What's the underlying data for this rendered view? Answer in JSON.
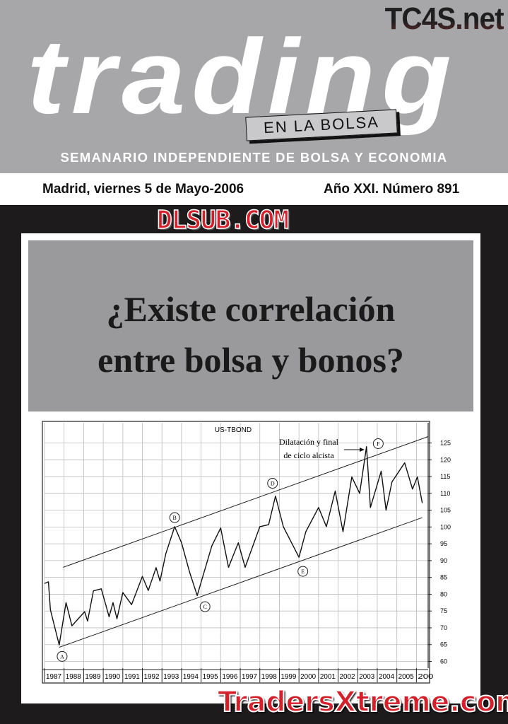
{
  "header": {
    "site_mark": "TC4S.net",
    "masthead": "trading",
    "tag": "EN LA BOLSA",
    "subtitle": "SEMANARIO INDEPENDIENTE DE BOLSA Y ECONOMIA",
    "date": "Madrid, viernes 5 de Mayo-2006",
    "issue": "Año XXI. Número 891"
  },
  "headline": {
    "line1": "¿Existe correlación",
    "line2": "entre bolsa y bonos?"
  },
  "watermarks": {
    "top": "DLSUB.COM",
    "bottom": "TradersXtreme.com"
  },
  "colors": {
    "header_bg": "#a7a6a8",
    "title_box": "#9a999b",
    "watermark_red": "#d4202a",
    "page_bg": "#1d1b1c"
  },
  "chart_data": {
    "type": "line",
    "title": "US-TBOND",
    "annotation": [
      "Dilatación y final",
      "de ciclo alcista"
    ],
    "xlim": [
      1987,
      2006.6
    ],
    "ylim": [
      58,
      131
    ],
    "yticks": [
      60,
      65,
      70,
      75,
      80,
      85,
      90,
      95,
      100,
      105,
      110,
      115,
      120,
      125
    ],
    "xticks": [
      "1987",
      "1988",
      "1989",
      "1990",
      "1991",
      "1992",
      "1993",
      "1994",
      "1995",
      "1996",
      "1997",
      "1998",
      "1999",
      "2000",
      "2001",
      "2002",
      "2003",
      "2004",
      "2005",
      "200"
    ],
    "grid": true,
    "series": [
      {
        "x": [
          1987.0,
          1987.2,
          1987.3,
          1987.75,
          1988.1,
          1988.4,
          1989.05,
          1989.2,
          1989.5,
          1989.9,
          1990.3,
          1990.5,
          1990.7,
          1991.0,
          1991.45,
          1992.0,
          1992.3,
          1992.7,
          1992.9,
          1993.2,
          1993.65,
          1994.0,
          1994.4,
          1994.8,
          1995.55,
          1996.0,
          1996.4,
          1996.9,
          1997.25,
          1998.0,
          1998.45,
          1998.8,
          1999.2,
          2000.0,
          2000.35,
          2001.0,
          2001.4,
          2001.85,
          2002.25,
          2002.7,
          2003.1,
          2003.45,
          2003.65,
          2004.2,
          2004.45,
          2004.75,
          2005.4,
          2005.8,
          2006.05,
          2006.3
        ],
        "y": [
          83.2,
          83.7,
          75.4,
          64.9,
          77.5,
          70.6,
          74.8,
          72.0,
          81.0,
          81.6,
          73.3,
          77.5,
          72.7,
          80.5,
          76.9,
          85.3,
          81.1,
          87.9,
          83.9,
          92.1,
          100.1,
          95.3,
          86.8,
          79.6,
          94.4,
          99.7,
          88.0,
          95.3,
          88.0,
          100.1,
          100.7,
          109.2,
          100.1,
          91.0,
          98.6,
          105.8,
          100.1,
          110.7,
          98.6,
          114.9,
          110.0,
          123.9,
          105.8,
          116.6,
          105.0,
          113.4,
          119.1,
          111.3,
          114.9,
          107.1
        ]
      }
    ],
    "trendlines": [
      {
        "x": [
          1987.95,
          2006.6
        ],
        "y": [
          88,
          126.9
        ]
      },
      {
        "x": [
          1987.75,
          2006.3
        ],
        "y": [
          64.2,
          102.8
        ]
      }
    ],
    "point_labels": [
      {
        "label": "A",
        "x": 1987.9,
        "y": 61.5
      },
      {
        "label": "B",
        "x": 1993.65,
        "y": 102.8
      },
      {
        "label": "C",
        "x": 1995.2,
        "y": 76.3
      },
      {
        "label": "D",
        "x": 1998.65,
        "y": 113
      },
      {
        "label": "E",
        "x": 2000.2,
        "y": 86.8
      },
      {
        "label": "F",
        "x": 2004.05,
        "y": 124.8
      }
    ]
  }
}
